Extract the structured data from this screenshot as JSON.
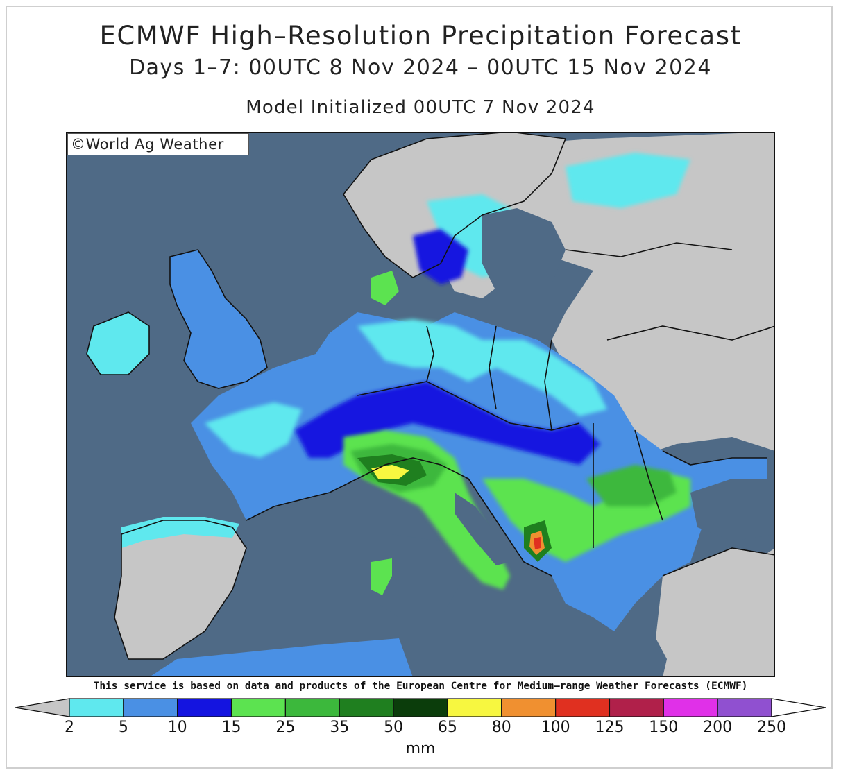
{
  "title": "ECMWF High–Resolution Precipitation Forecast",
  "subtitle": "Days 1–7: 00UTC 8 Nov 2024 – 00UTC 15 Nov 2024",
  "init_line": "Model Initialized 00UTC 7 Nov 2024",
  "credit": "©World Ag Weather",
  "service_note": "This service is based on data and products of the European Centre for Medium–range Weather Forecasts (ECMWF)",
  "legend": {
    "unit": "mm",
    "ticks": [
      "2",
      "5",
      "10",
      "15",
      "25",
      "35",
      "50",
      "65",
      "80",
      "100",
      "125",
      "150",
      "200",
      "250"
    ],
    "colors": [
      "#5fe8ee",
      "#4a90e4",
      "#1414e0",
      "#5ce350",
      "#3cb83c",
      "#1f7f1f",
      "#0b3d0b",
      "#f7f740",
      "#f09030",
      "#e03020",
      "#b0204a",
      "#e030e8",
      "#9050d0"
    ],
    "below_min_color": "#c6c6c6",
    "above_max_color": "#ffffff"
  },
  "map_colors": {
    "ocean": "#4f6a86",
    "land_dry": "#c6c6c6",
    "border": "#111111"
  }
}
